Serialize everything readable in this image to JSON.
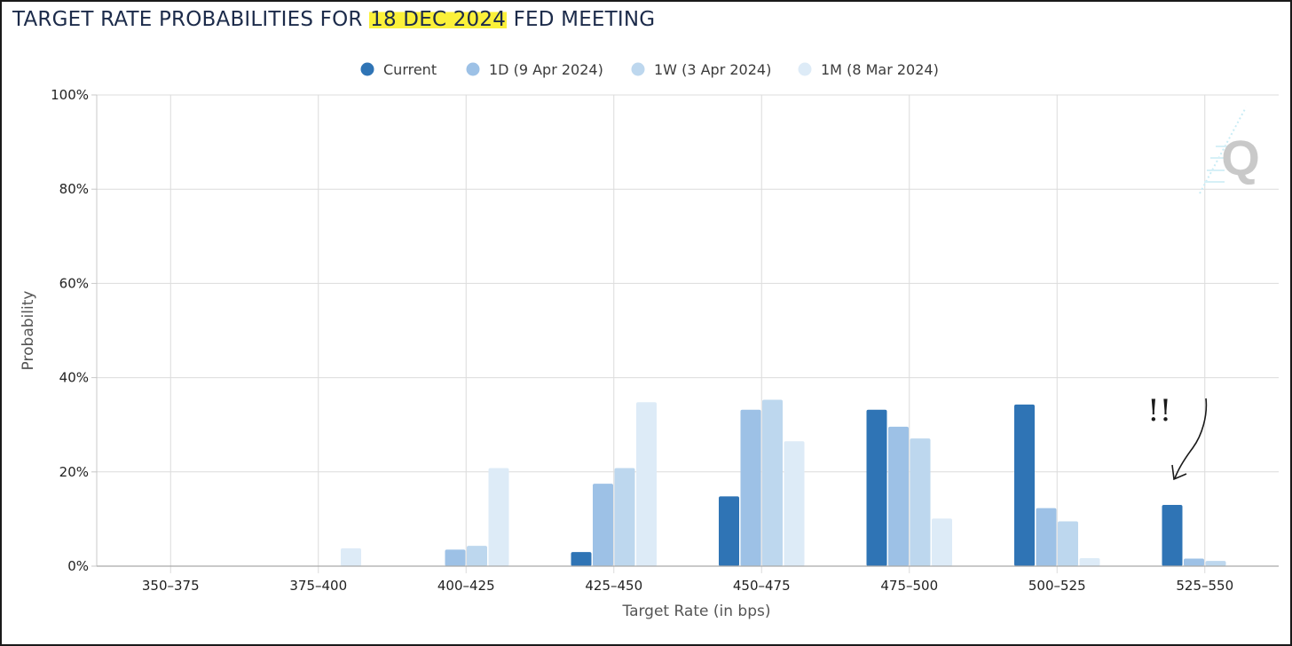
{
  "title": {
    "prefix": "TARGET RATE PROBABILITIES FOR ",
    "highlight": "18 DEC 2024",
    "suffix": " FED MEETING"
  },
  "chart_data": {
    "type": "bar",
    "xlabel": "Target Rate (in bps)",
    "ylabel": "Probability",
    "ylim": [
      0,
      100
    ],
    "yticks": [
      "0%",
      "20%",
      "40%",
      "60%",
      "80%",
      "100%"
    ],
    "grid": true,
    "legend_position": "top-center",
    "categories": [
      "350–375",
      "375–400",
      "400–425",
      "425–450",
      "450–475",
      "475–500",
      "500–525",
      "525–550"
    ],
    "series": [
      {
        "name": "Current",
        "color": "#2f74b5",
        "values": [
          0,
          0,
          0,
          3.0,
          14.8,
          33.2,
          34.3,
          13.0
        ]
      },
      {
        "name": "1D (9 Apr 2024)",
        "color": "#9dc1e6",
        "values": [
          0,
          0,
          3.5,
          17.5,
          33.2,
          29.6,
          12.3,
          1.6
        ]
      },
      {
        "name": "1W (3 Apr 2024)",
        "color": "#bdd7ee",
        "values": [
          0,
          0,
          4.3,
          20.8,
          35.3,
          27.1,
          9.5,
          1.1
        ]
      },
      {
        "name": "1M (8 Mar 2024)",
        "color": "#ddebf7",
        "values": [
          0,
          3.8,
          20.8,
          34.8,
          26.5,
          10.1,
          1.7,
          0
        ]
      }
    ],
    "annotation": {
      "text": "!!",
      "target": "525–550"
    }
  }
}
